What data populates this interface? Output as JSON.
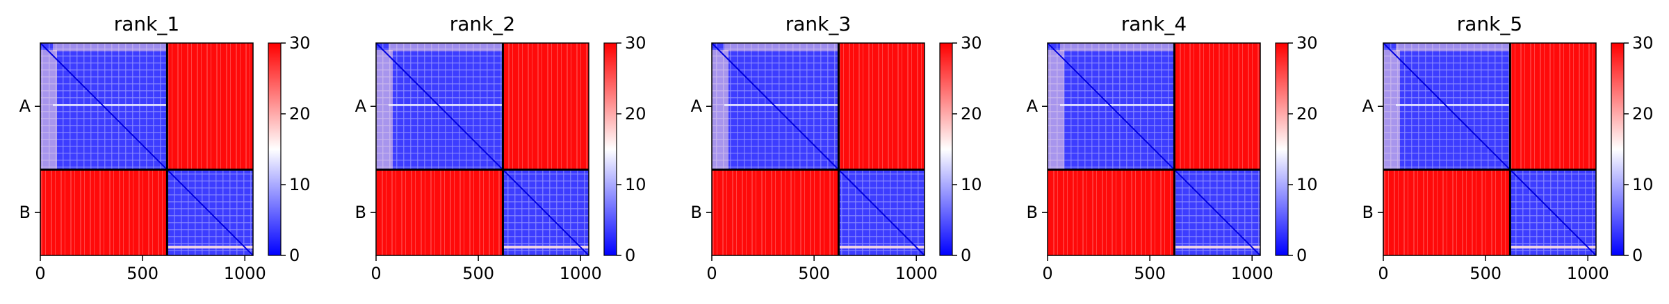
{
  "chart_data": {
    "type": "heatmap",
    "colormap": "bwr",
    "color_range": [
      0,
      30
    ],
    "colorbar_ticks": [
      0,
      10,
      20,
      30
    ],
    "x_range": [
      0,
      1040
    ],
    "x_ticks": [
      0,
      500,
      1000
    ],
    "y_ticks": [
      {
        "label": "A",
        "at": 310
      },
      {
        "label": "B",
        "at": 830
      }
    ],
    "chain_boundary": 620,
    "panels": [
      {
        "title": "rank_1"
      },
      {
        "title": "rank_2"
      },
      {
        "title": "rank_3"
      },
      {
        "title": "rank_4"
      },
      {
        "title": "rank_5"
      }
    ]
  }
}
